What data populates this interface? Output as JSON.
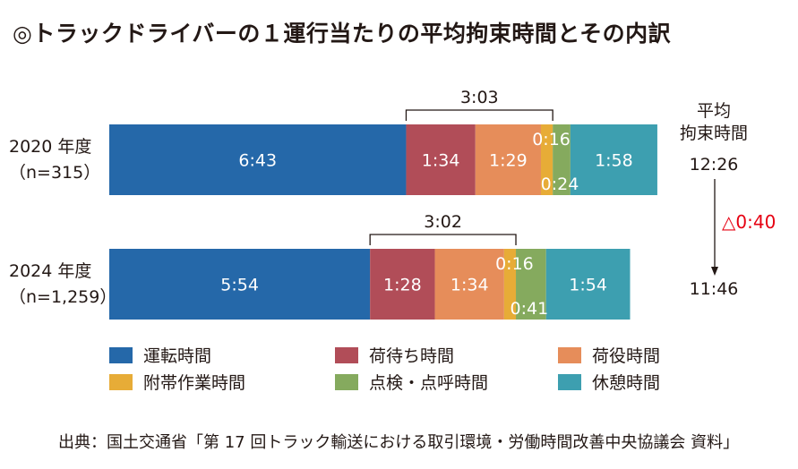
{
  "title": "◎トラックドライバーの１運行当たりの平均拘束時間とその内訳",
  "colors": {
    "driving": "#2568a9",
    "waiting": "#b14d58",
    "loading": "#e68d5a",
    "incidental": "#e7ac37",
    "inspection": "#85aa5e",
    "rest": "#3d9fb0",
    "reduction": "#e60012"
  },
  "chart_data": {
    "type": "bar",
    "stacked": true,
    "orientation": "horizontal",
    "unit": "h:mm",
    "categories": [
      "2020 年度（n=315）",
      "2024 年度（n=1,259）"
    ],
    "category_lines": [
      [
        "2020 年度",
        "（n=315）"
      ],
      [
        "2024 年度",
        "（n=1,259）"
      ]
    ],
    "series": [
      {
        "name": "運転時間",
        "key": "driving",
        "values": [
          403,
          354
        ],
        "labels": [
          "6:43",
          "5:54"
        ]
      },
      {
        "name": "荷待ち時間",
        "key": "waiting",
        "values": [
          94,
          88
        ],
        "labels": [
          "1:34",
          "1:28"
        ]
      },
      {
        "name": "荷役時間",
        "key": "loading",
        "values": [
          89,
          94
        ],
        "labels": [
          "1:29",
          "1:34"
        ]
      },
      {
        "name": "附帯作業時間",
        "key": "incidental",
        "values": [
          16,
          16
        ],
        "labels": [
          "0:16",
          "0:16"
        ]
      },
      {
        "name": "点検・点呼時間",
        "key": "inspection",
        "values": [
          24,
          41
        ],
        "labels": [
          "0:24",
          "0:41"
        ]
      },
      {
        "name": "休憩時間",
        "key": "rest",
        "values": [
          118,
          114
        ],
        "labels": [
          "1:58",
          "1:54"
        ]
      }
    ],
    "brackets": [
      {
        "label": "3:03",
        "value": 183
      },
      {
        "label": "3:02",
        "value": 182
      }
    ],
    "totals": {
      "header": [
        "平均",
        "拘束時間"
      ],
      "values": [
        "12:26",
        "11:46"
      ]
    },
    "change": "△0:40",
    "legend_position": "bottom"
  },
  "source": "出典：国土交通省「第 17 回トラック輸送における取引環境・労働時間改善中央協議会 資料」"
}
